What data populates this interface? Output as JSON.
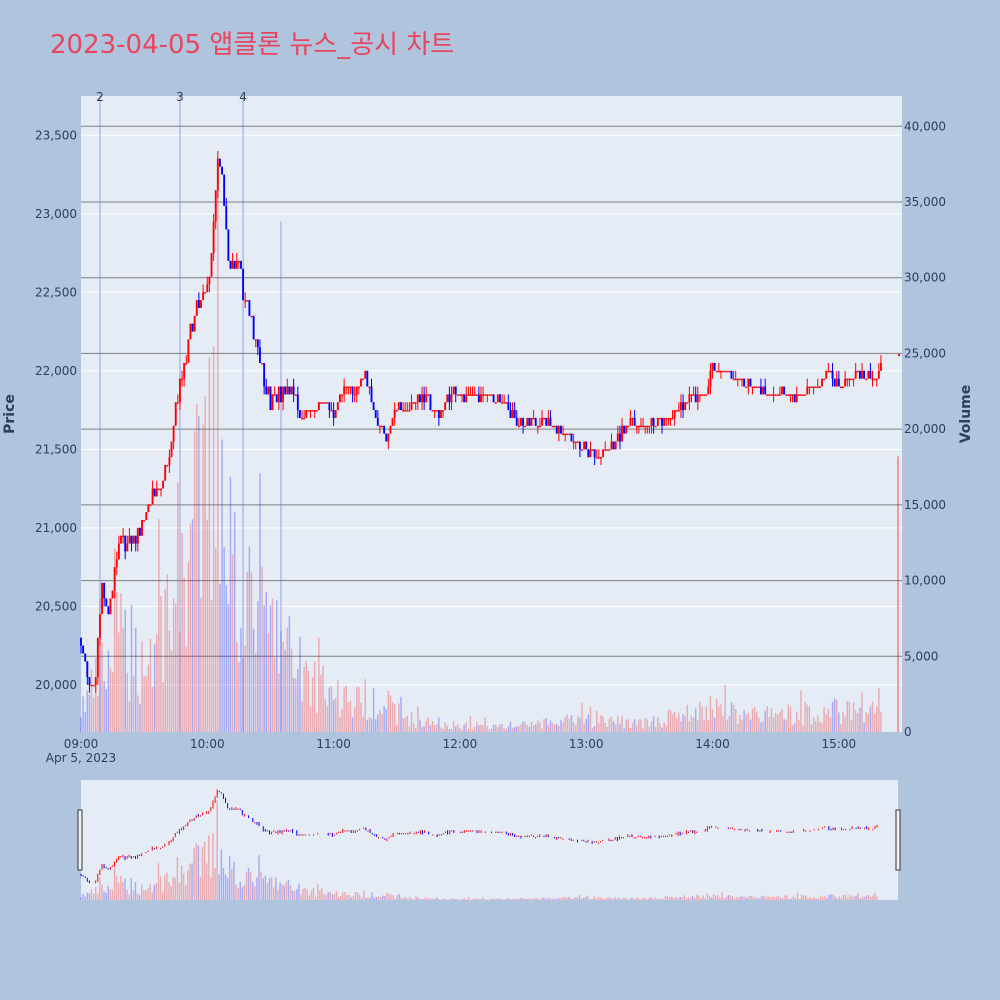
{
  "title": "2023-04-05 앱클론 뉴스_공시 차트",
  "colors": {
    "up": "#ff0000",
    "down": "#0000ff",
    "title": "#e8455f",
    "background": "#b0c4de",
    "plot_bg": "#e5ecf6"
  },
  "chart_data": {
    "type": "candlestick",
    "title": "2023-04-05 앱클론 뉴스_공시 차트",
    "date_label": "Apr 5, 2023",
    "xlabel": "",
    "ylabel": "Price",
    "y2label": "Volume",
    "x_range": [
      "09:00",
      "15:30"
    ],
    "ylim": [
      19700,
      23750
    ],
    "y2lim": [
      0,
      42000
    ],
    "x_ticks": [
      "09:00",
      "10:00",
      "11:00",
      "12:00",
      "13:00",
      "14:00",
      "15:00"
    ],
    "y_ticks": [
      20000,
      20500,
      21000,
      21500,
      22000,
      22500,
      23000,
      23500
    ],
    "y_tick_labels": [
      "20,000",
      "20,500",
      "21,000",
      "21,500",
      "22,000",
      "22,500",
      "23,000",
      "23,500"
    ],
    "y2_ticks": [
      0,
      5000,
      10000,
      15000,
      20000,
      25000,
      30000,
      35000,
      40000
    ],
    "y2_tick_labels": [
      "0",
      "5,000",
      "10,000",
      "15,000",
      "20,000",
      "25,000",
      "30,000",
      "35,000",
      "40,000"
    ],
    "news_markers": [
      {
        "label": "2",
        "time": "09:09"
      },
      {
        "label": "3",
        "time": "09:47"
      },
      {
        "label": "4",
        "time": "10:17"
      },
      {
        "label": "",
        "time": "10:35"
      }
    ],
    "price_path": [
      [
        "09:00",
        20300
      ],
      [
        "09:04",
        19950
      ],
      [
        "09:07",
        20050
      ],
      [
        "09:10",
        20650
      ],
      [
        "09:13",
        20450
      ],
      [
        "09:18",
        20900
      ],
      [
        "09:25",
        20900
      ],
      [
        "09:33",
        21150
      ],
      [
        "09:40",
        21350
      ],
      [
        "09:45",
        21800
      ],
      [
        "09:50",
        22100
      ],
      [
        "09:55",
        22400
      ],
      [
        "10:00",
        22500
      ],
      [
        "10:03",
        22900
      ],
      [
        "10:05",
        23350
      ],
      [
        "10:07",
        23200
      ],
      [
        "10:10",
        22700
      ],
      [
        "10:15",
        22650
      ],
      [
        "10:20",
        22350
      ],
      [
        "10:25",
        22100
      ],
      [
        "10:30",
        21800
      ],
      [
        "10:35",
        21850
      ],
      [
        "10:40",
        21900
      ],
      [
        "10:45",
        21700
      ],
      [
        "10:50",
        21750
      ],
      [
        "10:55",
        21800
      ],
      [
        "11:00",
        21700
      ],
      [
        "11:05",
        21900
      ],
      [
        "11:10",
        21850
      ],
      [
        "11:15",
        22000
      ],
      [
        "11:20",
        21700
      ],
      [
        "11:25",
        21550
      ],
      [
        "11:30",
        21800
      ],
      [
        "11:35",
        21750
      ],
      [
        "11:40",
        21850
      ],
      [
        "11:45",
        21800
      ],
      [
        "11:50",
        21700
      ],
      [
        "11:55",
        21850
      ],
      [
        "12:00",
        21850
      ],
      [
        "12:10",
        21850
      ],
      [
        "12:20",
        21800
      ],
      [
        "12:30",
        21650
      ],
      [
        "12:40",
        21700
      ],
      [
        "12:50",
        21600
      ],
      [
        "12:55",
        21550
      ],
      [
        "13:00",
        21500
      ],
      [
        "13:05",
        21450
      ],
      [
        "13:10",
        21500
      ],
      [
        "13:15",
        21550
      ],
      [
        "13:20",
        21700
      ],
      [
        "13:25",
        21650
      ],
      [
        "13:30",
        21650
      ],
      [
        "13:40",
        21700
      ],
      [
        "13:50",
        21850
      ],
      [
        "13:55",
        21800
      ],
      [
        "14:00",
        22000
      ],
      [
        "14:05",
        22000
      ],
      [
        "14:10",
        21950
      ],
      [
        "14:15",
        21900
      ],
      [
        "14:20",
        21900
      ],
      [
        "14:30",
        21850
      ],
      [
        "14:40",
        21850
      ],
      [
        "14:50",
        21900
      ],
      [
        "14:55",
        22000
      ],
      [
        "15:00",
        21900
      ],
      [
        "15:05",
        21950
      ],
      [
        "15:10",
        22000
      ],
      [
        "15:15",
        21950
      ],
      [
        "15:20",
        22000
      ]
    ],
    "volume_profile": [
      [
        "09:00",
        1800
      ],
      [
        "09:10",
        4500
      ],
      [
        "09:20",
        7500
      ],
      [
        "09:30",
        5000
      ],
      [
        "09:40",
        9000
      ],
      [
        "09:50",
        14000
      ],
      [
        "10:00",
        18000
      ],
      [
        "10:05",
        24000
      ],
      [
        "10:10",
        15000
      ],
      [
        "10:20",
        9000
      ],
      [
        "10:30",
        8000
      ],
      [
        "10:40",
        5500
      ],
      [
        "10:50",
        4000
      ],
      [
        "11:00",
        3000
      ],
      [
        "11:10",
        2200
      ],
      [
        "11:20",
        2800
      ],
      [
        "11:30",
        1500
      ],
      [
        "11:40",
        800
      ],
      [
        "12:00",
        500
      ],
      [
        "12:30",
        500
      ],
      [
        "13:00",
        900
      ],
      [
        "13:30",
        700
      ],
      [
        "14:00",
        1800
      ],
      [
        "14:30",
        1200
      ],
      [
        "15:00",
        1700
      ],
      [
        "15:20",
        1500
      ],
      [
        "15:25",
        2500
      ]
    ]
  }
}
